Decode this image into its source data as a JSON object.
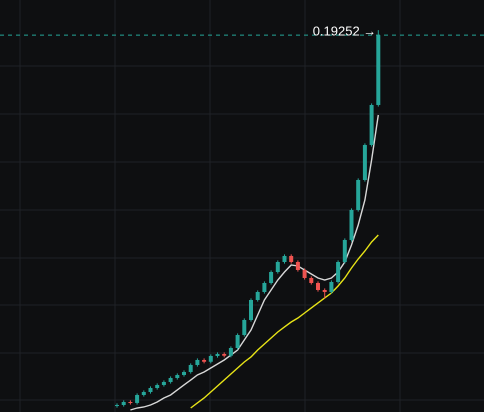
{
  "chart_data": {
    "type": "candlestick",
    "ylim": [
      0.005,
      0.21
    ],
    "open": [
      0.008,
      0.00848,
      0.00998,
      0.0095,
      0.01346,
      0.01495,
      0.01694,
      0.01844,
      0.01993,
      0.02192,
      0.02341,
      0.0249,
      0.02839,
      0.03088,
      0.03,
      0.03287,
      0.03386,
      0.033,
      0.03685,
      0.04332,
      0.05078,
      0.06073,
      0.06471,
      0.06919,
      0.07466,
      0.07964,
      0.08263,
      0.07964,
      0.07566,
      0.07168,
      0.06919,
      0.06571,
      0.06471,
      0.06969,
      0.07964,
      0.09059,
      0.10552,
      0.12044,
      0.13786,
      0.15776
    ],
    "high": [
      0.00928,
      0.01078,
      0.01078,
      0.01426,
      0.01575,
      0.01774,
      0.01924,
      0.02073,
      0.02272,
      0.02421,
      0.0257,
      0.02919,
      0.03168,
      0.03168,
      0.03367,
      0.03466,
      0.03466,
      0.03765,
      0.04412,
      0.05158,
      0.06153,
      0.06551,
      0.06999,
      0.07546,
      0.08044,
      0.08343,
      0.08343,
      0.08044,
      0.07646,
      0.07248,
      0.06999,
      0.06651,
      0.07049,
      0.08044,
      0.09139,
      0.10632,
      0.12124,
      0.13866,
      0.15856,
      0.195
    ],
    "low": [
      0.0072,
      0.00768,
      0.0087,
      0.0087,
      0.01266,
      0.01415,
      0.01614,
      0.01764,
      0.01913,
      0.02112,
      0.02261,
      0.0241,
      0.02759,
      0.0292,
      0.0292,
      0.03207,
      0.0322,
      0.0322,
      0.03605,
      0.04252,
      0.04998,
      0.05993,
      0.06391,
      0.06839,
      0.07386,
      0.07884,
      0.07884,
      0.07486,
      0.07088,
      0.06839,
      0.06491,
      0.0615,
      0.06391,
      0.06889,
      0.07884,
      0.08979,
      0.10472,
      0.11964,
      0.13706,
      0.15696
    ],
    "close": [
      0.00848,
      0.00998,
      0.0095,
      0.01346,
      0.01495,
      0.01694,
      0.01844,
      0.01993,
      0.02192,
      0.02341,
      0.0249,
      0.02839,
      0.03088,
      0.03,
      0.03287,
      0.03386,
      0.033,
      0.03685,
      0.04332,
      0.05078,
      0.06073,
      0.06471,
      0.06919,
      0.07466,
      0.07964,
      0.08263,
      0.07964,
      0.07566,
      0.07168,
      0.06919,
      0.06571,
      0.06471,
      0.06969,
      0.07964,
      0.09059,
      0.10552,
      0.12044,
      0.13786,
      0.15776,
      0.19252
    ],
    "colors": {
      "up": "#26a69a",
      "down": "#ef5350"
    },
    "lines": [
      {
        "color": "#d8d8d8",
        "values": [
          null,
          null,
          0.006,
          0.00699,
          0.00749,
          0.00848,
          0.00998,
          0.01197,
          0.01346,
          0.01595,
          0.01844,
          0.02092,
          0.02341,
          0.0249,
          0.0269,
          0.02888,
          0.03088,
          0.03336,
          0.03585,
          0.04083,
          0.0458,
          0.05327,
          0.06073,
          0.06571,
          0.07068,
          0.07466,
          0.07815,
          0.07765,
          0.07566,
          0.07367,
          0.07168,
          0.07068,
          0.07168,
          0.07466,
          0.07964,
          0.0881,
          0.09805,
          0.11049,
          0.1304,
          0.15279
        ]
      },
      {
        "color": "#e8e417",
        "values": [
          null,
          null,
          null,
          null,
          null,
          null,
          null,
          null,
          null,
          null,
          null,
          0.00699,
          0.00948,
          0.01197,
          0.01495,
          0.01794,
          0.02092,
          0.02391,
          0.0269,
          0.02988,
          0.03237,
          0.03585,
          0.03884,
          0.04182,
          0.04481,
          0.0473,
          0.04978,
          0.05177,
          0.05426,
          0.05675,
          0.05924,
          0.06173,
          0.06421,
          0.0677,
          0.07168,
          0.07665,
          0.08113,
          0.08511,
          0.08959,
          0.09308
        ]
      }
    ],
    "price_line": {
      "value": 0.19252,
      "label": "0.19252 →"
    },
    "grid": true
  }
}
